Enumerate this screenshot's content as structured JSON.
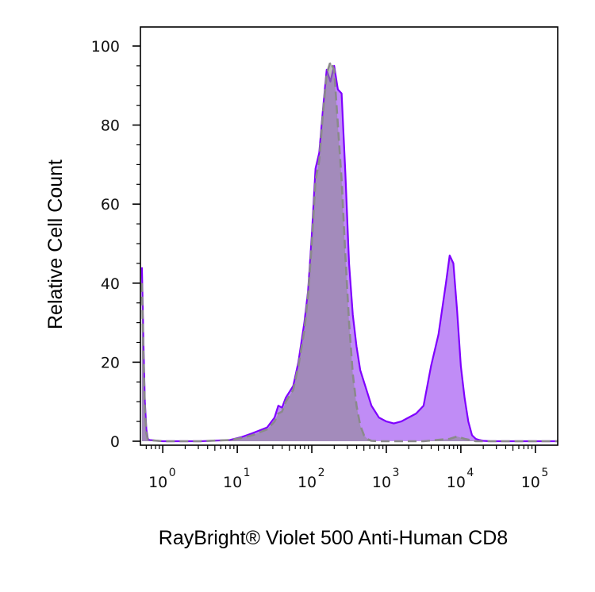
{
  "chart_data": {
    "type": "area",
    "title": "",
    "xlabel": "RayBright® Violet 500 Anti-Human CD8",
    "ylabel": "Relative Cell Count",
    "x_scale": "log",
    "xlim": [
      -0.3,
      5.3
    ],
    "ylim": [
      0,
      105
    ],
    "grid": false,
    "legend": "none",
    "x_ticks": [
      {
        "base": "10",
        "exp": "0",
        "value": 0
      },
      {
        "base": "10",
        "exp": "1",
        "value": 1
      },
      {
        "base": "10",
        "exp": "2",
        "value": 2
      },
      {
        "base": "10",
        "exp": "3",
        "value": 3
      },
      {
        "base": "10",
        "exp": "4",
        "value": 4
      },
      {
        "base": "10",
        "exp": "5",
        "value": 5
      }
    ],
    "y_ticks": [
      {
        "label": "0",
        "value": 0
      },
      {
        "label": "20",
        "value": 20
      },
      {
        "label": "40",
        "value": 40
      },
      {
        "label": "60",
        "value": 60
      },
      {
        "label": "80",
        "value": 80
      },
      {
        "label": "100",
        "value": 100
      }
    ],
    "series": [
      {
        "style": "solid",
        "line_color": "#7f00ff",
        "fill_color": "#c08cf6",
        "x": [
          -0.28,
          -0.26,
          -0.24,
          -0.22,
          -0.2,
          -0.18,
          0.0,
          0.5,
          0.9,
          1.05,
          1.2,
          1.4,
          1.5,
          1.55,
          1.6,
          1.65,
          1.75,
          1.82,
          1.9,
          1.95,
          2.0,
          2.05,
          2.1,
          2.15,
          2.2,
          2.25,
          2.3,
          2.35,
          2.4,
          2.45,
          2.5,
          2.55,
          2.6,
          2.65,
          2.7,
          2.75,
          2.8,
          2.85,
          2.9,
          3.0,
          3.1,
          3.2,
          3.3,
          3.4,
          3.5,
          3.6,
          3.7,
          3.8,
          3.85,
          3.9,
          3.95,
          4.0,
          4.05,
          4.1,
          4.15,
          4.2,
          4.25,
          4.3,
          4.4,
          4.6,
          5.0,
          5.3
        ],
        "y": [
          44,
          25,
          10,
          3,
          0.6,
          0.3,
          0,
          0,
          0.3,
          1,
          2,
          3.5,
          6,
          9,
          8.5,
          11,
          14,
          20,
          30,
          38,
          52,
          69,
          73,
          84,
          94,
          91,
          95,
          89,
          88,
          68,
          45,
          32,
          24,
          18,
          15,
          12,
          9,
          7.5,
          6,
          5,
          4.5,
          5,
          6,
          7,
          9,
          19,
          27,
          40,
          47,
          45,
          33,
          19,
          11,
          5,
          1.5,
          0.6,
          0.3,
          0.1,
          0,
          0,
          0,
          0
        ]
      },
      {
        "style": "dashed",
        "line_color": "#8a8a8a",
        "fill_color": "#8a8a8a",
        "x": [
          -0.28,
          -0.26,
          -0.24,
          -0.22,
          -0.2,
          0.0,
          0.5,
          0.9,
          1.05,
          1.2,
          1.4,
          1.5,
          1.55,
          1.6,
          1.65,
          1.75,
          1.82,
          1.9,
          1.95,
          2.0,
          2.05,
          2.1,
          2.15,
          2.2,
          2.25,
          2.3,
          2.35,
          2.4,
          2.45,
          2.5,
          2.55,
          2.6,
          2.65,
          2.7,
          2.75,
          2.8,
          2.9,
          3.1,
          3.5,
          3.85,
          3.95,
          4.05,
          4.2,
          4.5,
          5.0,
          5.3
        ],
        "y": [
          40,
          22,
          8,
          2,
          0.3,
          0,
          0,
          0.3,
          0.8,
          1.5,
          3,
          5,
          7,
          7.5,
          10,
          13,
          19,
          28,
          37,
          50,
          66,
          71,
          83,
          93,
          96,
          94,
          80,
          66,
          47,
          30,
          17,
          9,
          4,
          1.5,
          0.5,
          0.1,
          0,
          0,
          0,
          0.6,
          1.2,
          0.6,
          0,
          0,
          0,
          0
        ]
      }
    ]
  }
}
